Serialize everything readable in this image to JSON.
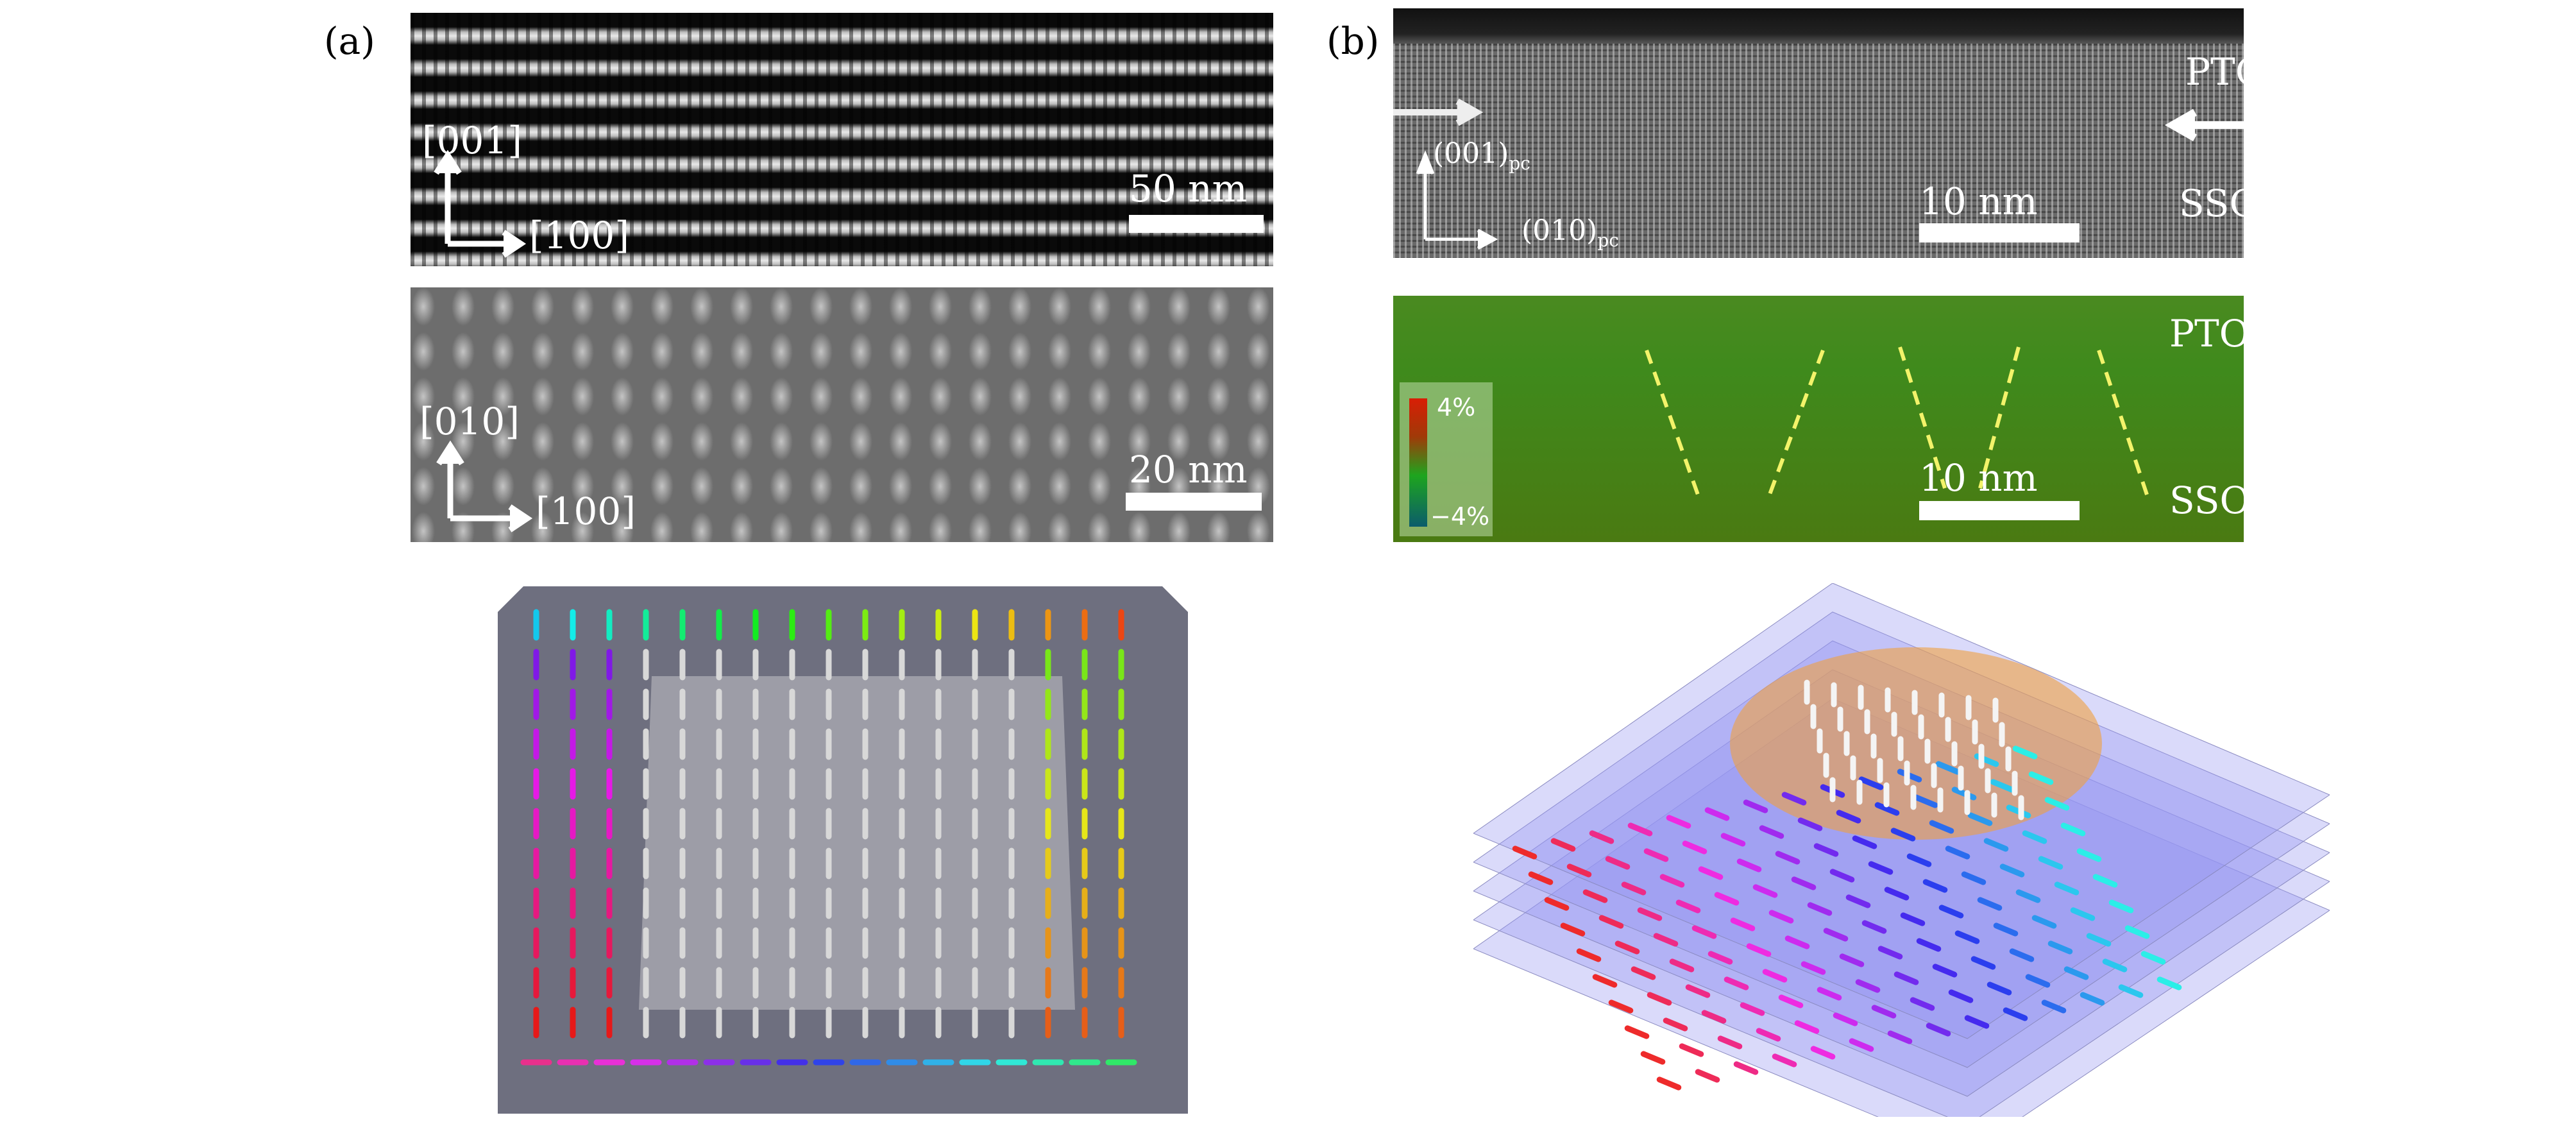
{
  "panel_a": {
    "label": "(a)",
    "top_image": {
      "axis_vertical": "[001]",
      "axis_horizontal": "[100]",
      "scale_bar": "50 nm"
    },
    "middle_image": {
      "axis_vertical": "[010]",
      "axis_horizontal": "[100]",
      "scale_bar": "20 nm"
    }
  },
  "panel_b": {
    "label": "(b)",
    "top_image": {
      "layer_top": "PTO",
      "layer_bottom": "SSO",
      "axis_vertical": "(001)",
      "axis_vertical_sub": "pc",
      "axis_horizontal": "(010)",
      "axis_horizontal_sub": "pc",
      "scale_bar": "10 nm"
    },
    "strain_map": {
      "layer_top": "PTO",
      "layer_bottom": "SSO",
      "colorbar_max": "4%",
      "colorbar_min": "−4%",
      "scale_bar": "10 nm"
    }
  },
  "colors": {
    "strain_high": "#d81e05",
    "strain_mid": "#1ea51e",
    "strain_low": "#0b5c6b",
    "dashed_line": "#f3f36a"
  }
}
